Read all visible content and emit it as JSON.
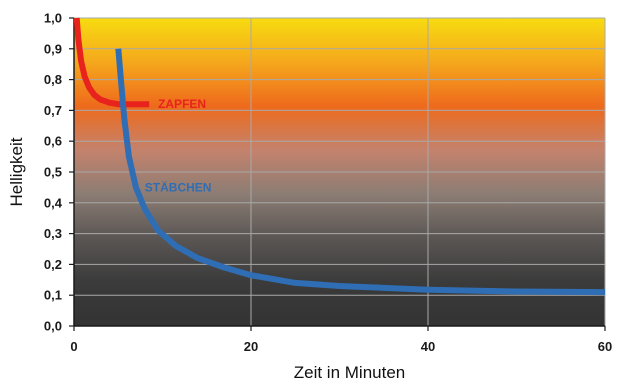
{
  "chart_data": {
    "type": "line",
    "xlabel": "Zeit in Minuten",
    "ylabel": "Helligkeit",
    "xlim": [
      0,
      60
    ],
    "ylim": [
      0,
      1
    ],
    "grid": true,
    "x_ticks": [
      0,
      20,
      40,
      60
    ],
    "x_tick_labels": [
      "0",
      "20",
      "40",
      "60"
    ],
    "y_ticks": [
      0,
      0.1,
      0.2,
      0.3,
      0.4,
      0.5,
      0.6,
      0.7,
      0.8,
      0.9,
      1.0
    ],
    "y_tick_labels": [
      "0,0",
      "0,1",
      "0,2",
      "0,3",
      "0,4",
      "0,5",
      "0,6",
      "0,7",
      "0,8",
      "0,9",
      "1,0"
    ],
    "background_gradient": [
      "#f7dc10",
      "#f5a81c",
      "#ee6a1c",
      "#c4826c",
      "#8c7d74",
      "#5a5654",
      "#3b3b3b",
      "#333333"
    ],
    "series": [
      {
        "name": "ZAPFEN",
        "color": "#e8231e",
        "x": [
          0.3,
          0.5,
          0.8,
          1.2,
          1.7,
          2.3,
          3.0,
          4.0,
          5.0,
          6.5,
          8.5
        ],
        "y": [
          1.0,
          0.93,
          0.86,
          0.81,
          0.775,
          0.75,
          0.735,
          0.725,
          0.72,
          0.72,
          0.72
        ]
      },
      {
        "name": "STÄBCHEN",
        "color": "#2f6eb5",
        "x": [
          5.0,
          5.3,
          5.7,
          6.2,
          7.0,
          8.0,
          9.5,
          11.5,
          14.0,
          17.0,
          20.0,
          25.0,
          30.0,
          40.0,
          50.0,
          60.0
        ],
        "y": [
          0.9,
          0.8,
          0.67,
          0.55,
          0.45,
          0.38,
          0.31,
          0.26,
          0.22,
          0.19,
          0.165,
          0.14,
          0.13,
          0.118,
          0.112,
          0.11
        ]
      }
    ]
  }
}
